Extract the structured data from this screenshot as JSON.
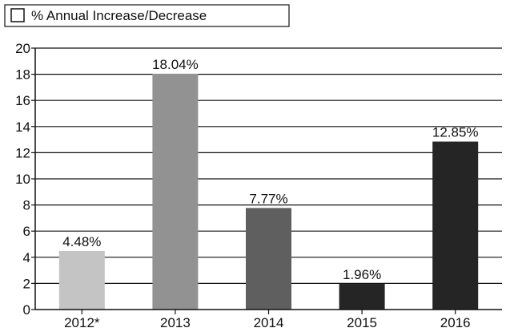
{
  "chart_data": {
    "type": "bar",
    "categories": [
      "2012*",
      "2013",
      "2014",
      "2015",
      "2016"
    ],
    "series": [
      {
        "name": "% Annual Increase/Decrease",
        "values": [
          4.48,
          18.04,
          7.77,
          1.96,
          12.85
        ],
        "data_labels": [
          "4.48%",
          "18.04%",
          "7.77%",
          "1.96%",
          "12.85%"
        ],
        "colors": [
          "#c4c4c4",
          "#929292",
          "#5f5f5f",
          "#252525",
          "#252525"
        ]
      }
    ],
    "ylim": [
      0,
      20
    ],
    "yticks": [
      0,
      2,
      4,
      6,
      8,
      10,
      12,
      14,
      16,
      18,
      20
    ],
    "grid": true,
    "legend": "top-left",
    "title": "",
    "xlabel": "",
    "ylabel": ""
  }
}
